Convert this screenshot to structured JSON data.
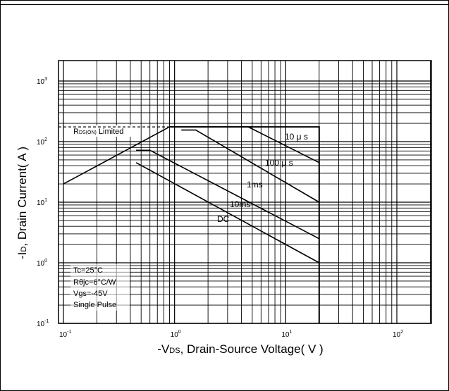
{
  "chart_data": {
    "type": "line",
    "title": "",
    "xlabel_parts": {
      "pre": "-V",
      "sub": "DS",
      "post": ", Drain-Source Voltage( V )"
    },
    "ylabel_parts": {
      "pre": "-I",
      "sub": "D",
      "post": ", Drain Current( A )"
    },
    "x_scale": "log",
    "y_scale": "log",
    "xlim": [
      0.1,
      300
    ],
    "ylim": [
      0.1,
      1500
    ],
    "x_ticks": [
      {
        "value": 0.1,
        "base": "10",
        "exp": "-1"
      },
      {
        "value": 1,
        "base": "10",
        "exp": "0"
      },
      {
        "value": 10,
        "base": "10",
        "exp": "1"
      },
      {
        "value": 100,
        "base": "10",
        "exp": "2"
      }
    ],
    "y_ticks": [
      {
        "value": 0.1,
        "base": "10",
        "exp": "-1"
      },
      {
        "value": 1,
        "base": "10",
        "exp": "0"
      },
      {
        "value": 10,
        "base": "10",
        "exp": "1"
      },
      {
        "value": 100,
        "base": "10",
        "exp": "2"
      },
      {
        "value": 1000,
        "base": "10",
        "exp": "3"
      }
    ],
    "grid": true,
    "rds_limit": {
      "label_pre": "R",
      "label_sub": "DS(ON)",
      "label_post": " Limited",
      "x": [
        0.1,
        0.9
      ],
      "y": [
        175,
        175
      ]
    },
    "boundary": {
      "x": [
        0.9,
        20,
        20
      ],
      "y": [
        175,
        175,
        0.1
      ]
    },
    "series": [
      {
        "name": "10 μ s",
        "x": [
          0.1,
          0.9,
          4.6,
          20
        ],
        "y": [
          20,
          175,
          175,
          45
        ]
      },
      {
        "name": "100 μ s",
        "x": [
          1.15,
          1.55,
          20
        ],
        "y": [
          155,
          155,
          10
        ]
      },
      {
        "name": "1ms",
        "x": [
          0.45,
          0.6,
          20
        ],
        "y": [
          72,
          72,
          2.5
        ]
      },
      {
        "name": "10ms",
        "x": [
          0.45,
          20
        ],
        "y": [
          45,
          1
        ]
      },
      {
        "name": "DC",
        "x": [],
        "y": []
      }
    ],
    "conditions": [
      "Tc=25°C",
      "Rθjc=6°C/W",
      "Vgs=-45V",
      "Single Pulse"
    ]
  }
}
